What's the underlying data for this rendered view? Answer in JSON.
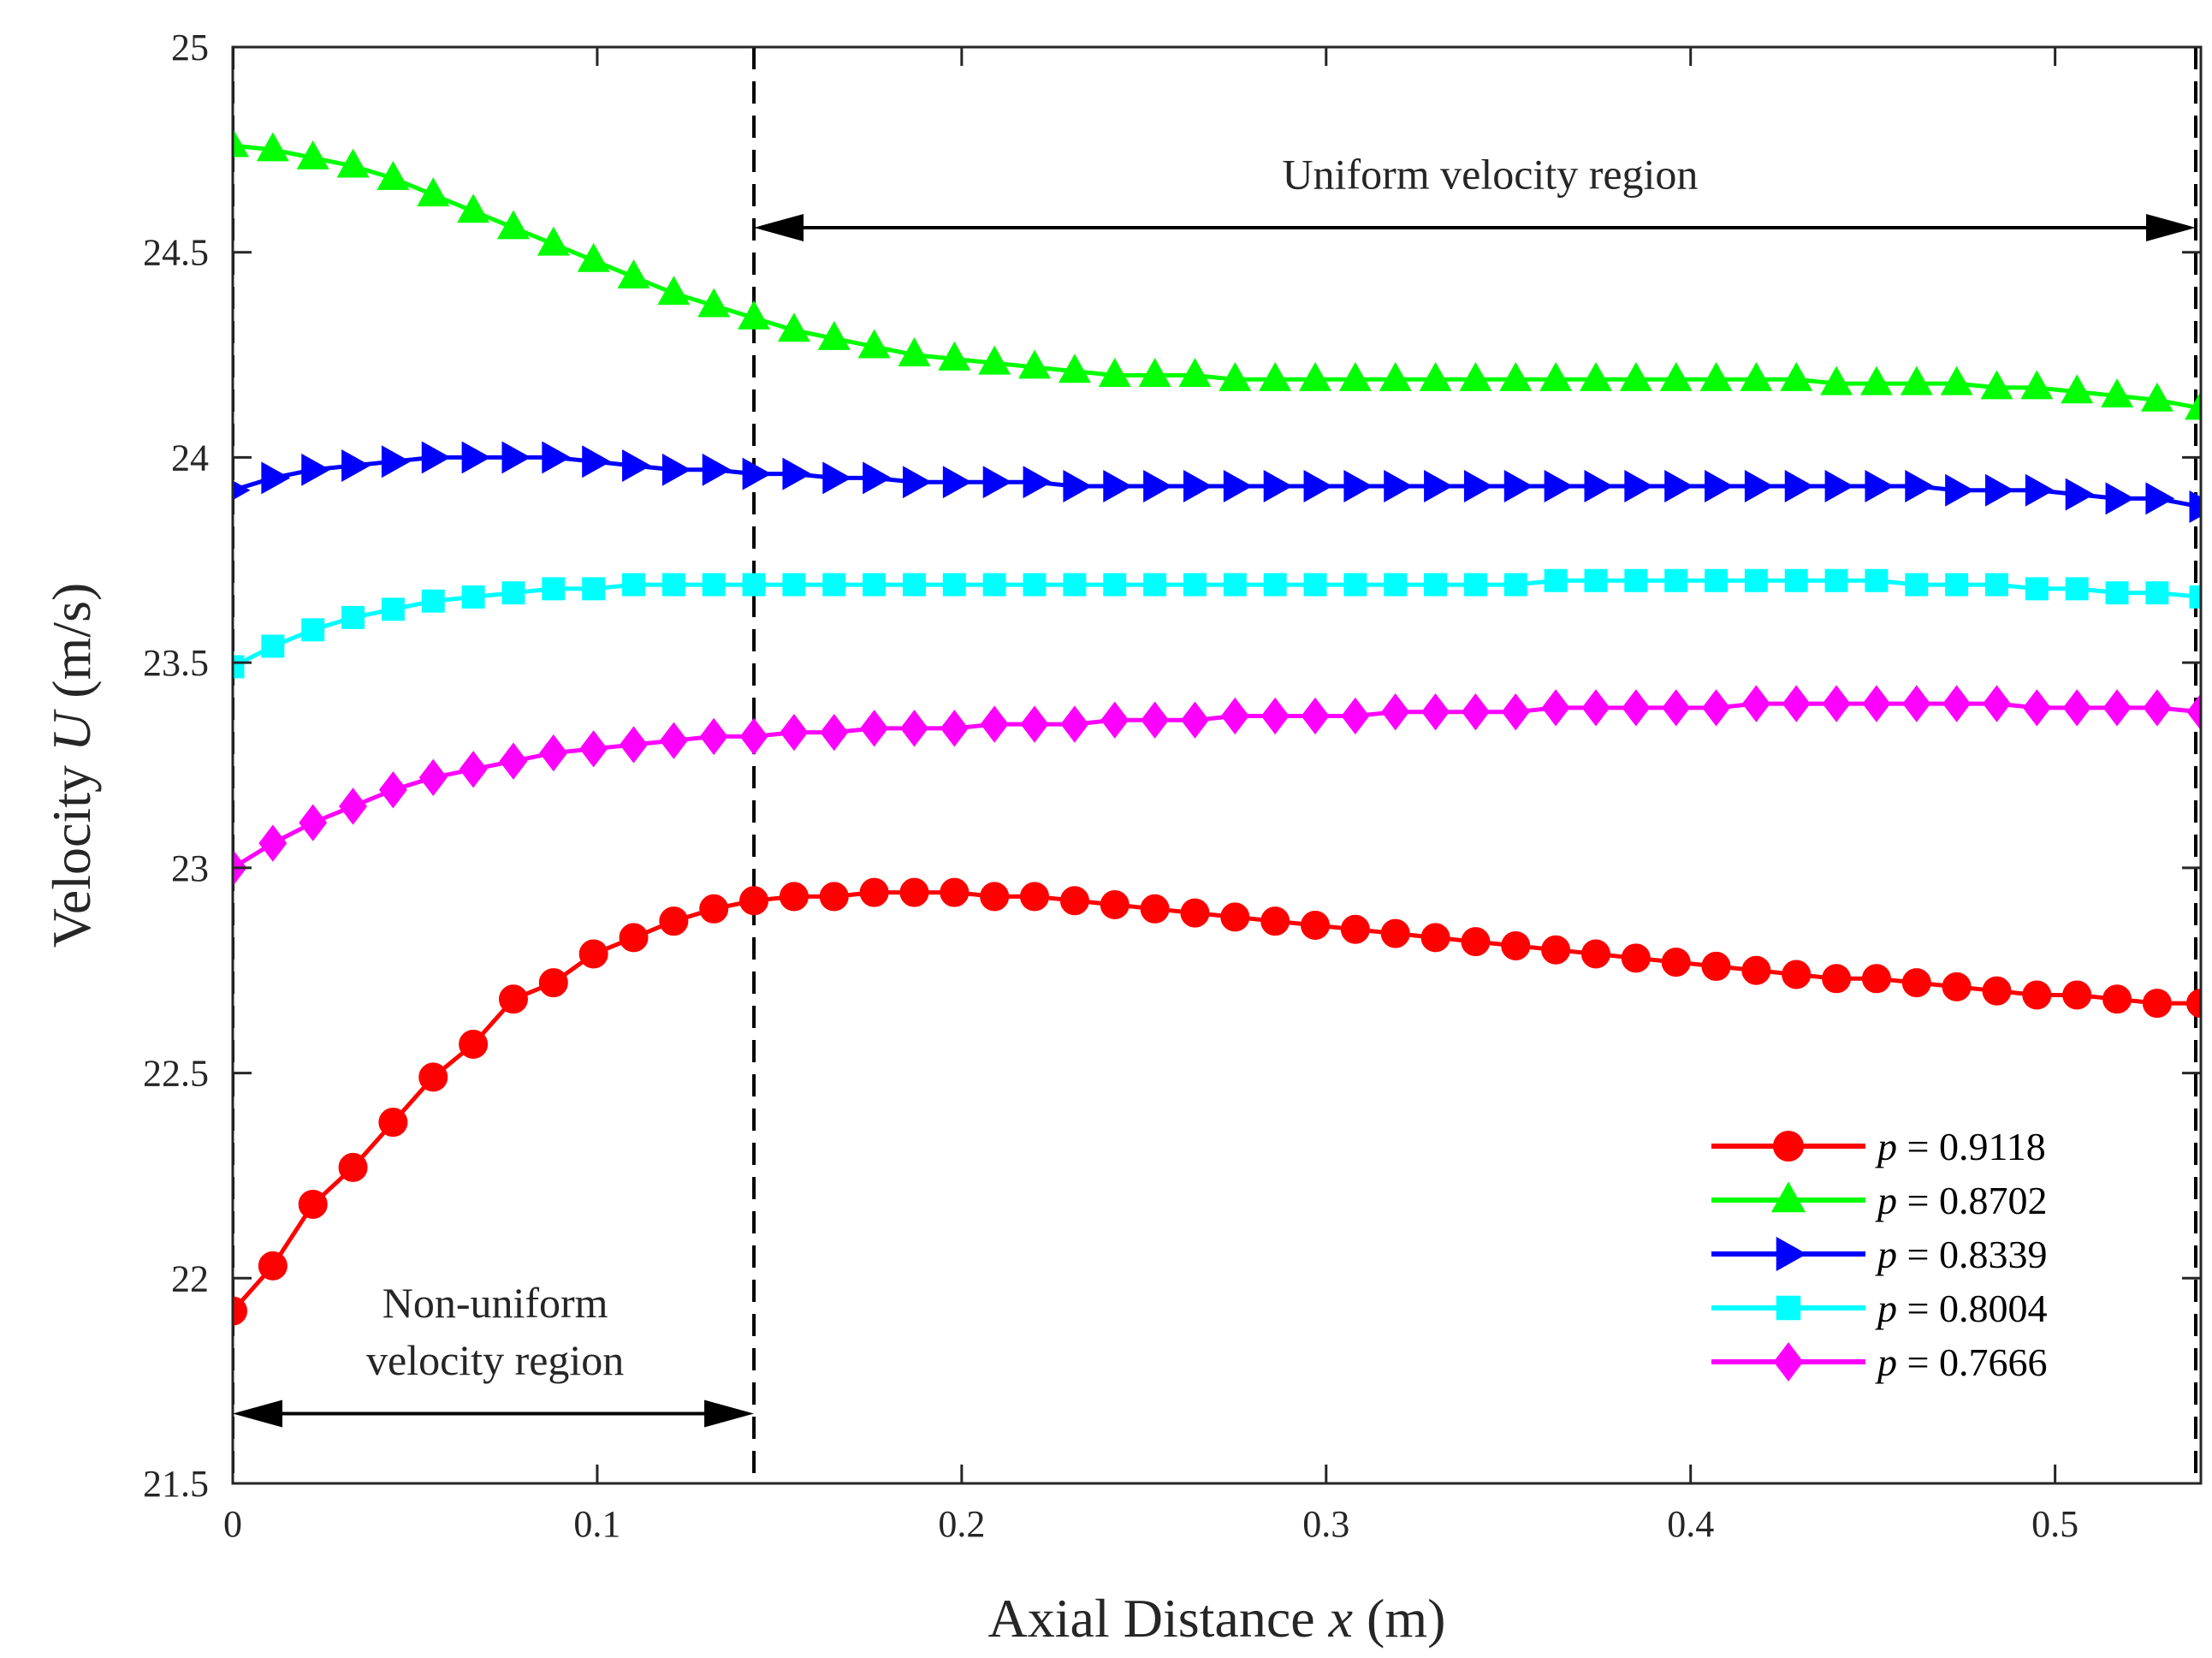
{
  "chart_data": {
    "type": "line",
    "title": "",
    "xlabel": {
      "prefix": "Axial Distance ",
      "var": "x",
      "suffix": " (m)"
    },
    "ylabel": {
      "prefix": "Velocity ",
      "var": "U",
      "suffix": " (m/s)"
    },
    "xlim": [
      0,
      0.54
    ],
    "ylim": [
      21.5,
      25
    ],
    "x_ticks": [
      0,
      0.1,
      0.2,
      0.3,
      0.4,
      0.5
    ],
    "x_tick_labels": [
      "0",
      "0.1",
      "0.2",
      "0.3",
      "0.4",
      "0.5"
    ],
    "y_ticks": [
      21.5,
      22,
      22.5,
      23,
      23.5,
      24,
      24.5,
      25
    ],
    "y_tick_labels": [
      "21.5",
      "22",
      "22.5",
      "23",
      "23.5",
      "24",
      "24.5",
      "25"
    ],
    "grid": false,
    "legend_position": "bottom-right",
    "x": [
      0,
      0.011,
      0.022,
      0.033,
      0.044,
      0.055,
      0.066,
      0.077,
      0.088,
      0.099,
      0.11,
      0.121,
      0.132,
      0.143,
      0.154,
      0.165,
      0.176,
      0.187,
      0.198,
      0.209,
      0.22,
      0.231,
      0.242,
      0.253,
      0.264,
      0.275,
      0.286,
      0.297,
      0.308,
      0.319,
      0.33,
      0.341,
      0.352,
      0.363,
      0.374,
      0.385,
      0.396,
      0.407,
      0.418,
      0.429,
      0.44,
      0.451,
      0.462,
      0.473,
      0.484,
      0.495,
      0.506,
      0.517,
      0.528,
      0.54
    ],
    "series": [
      {
        "name_var": "p",
        "name_value": " = 0.9118",
        "color": "#ff0000",
        "marker": "circle",
        "values": [
          21.92,
          22.03,
          22.18,
          22.27,
          22.38,
          22.49,
          22.57,
          22.68,
          22.72,
          22.79,
          22.83,
          22.87,
          22.9,
          22.92,
          22.93,
          22.93,
          22.94,
          22.94,
          22.94,
          22.93,
          22.93,
          22.92,
          22.91,
          22.9,
          22.89,
          22.88,
          22.87,
          22.86,
          22.85,
          22.84,
          22.83,
          22.82,
          22.81,
          22.8,
          22.79,
          22.78,
          22.77,
          22.76,
          22.75,
          22.74,
          22.73,
          22.73,
          22.72,
          22.71,
          22.7,
          22.69,
          22.69,
          22.68,
          22.67,
          22.67
        ]
      },
      {
        "name_var": "p",
        "name_value": " = 0.8702",
        "color": "#00ff00",
        "marker": "triangle-up",
        "values": [
          24.76,
          24.75,
          24.73,
          24.71,
          24.68,
          24.64,
          24.6,
          24.56,
          24.52,
          24.48,
          24.44,
          24.4,
          24.37,
          24.34,
          24.31,
          24.29,
          24.27,
          24.25,
          24.24,
          24.23,
          24.22,
          24.21,
          24.2,
          24.2,
          24.2,
          24.19,
          24.19,
          24.19,
          24.19,
          24.19,
          24.19,
          24.19,
          24.19,
          24.19,
          24.19,
          24.19,
          24.19,
          24.19,
          24.19,
          24.19,
          24.18,
          24.18,
          24.18,
          24.18,
          24.17,
          24.17,
          24.16,
          24.15,
          24.14,
          24.12
        ]
      },
      {
        "name_var": "p",
        "name_value": " = 0.8339",
        "color": "#0000ff",
        "marker": "triangle-right",
        "values": [
          23.92,
          23.95,
          23.97,
          23.98,
          23.99,
          24.0,
          24.0,
          24.0,
          24.0,
          23.99,
          23.98,
          23.97,
          23.97,
          23.96,
          23.96,
          23.95,
          23.95,
          23.94,
          23.94,
          23.94,
          23.94,
          23.93,
          23.93,
          23.93,
          23.93,
          23.93,
          23.93,
          23.93,
          23.93,
          23.93,
          23.93,
          23.93,
          23.93,
          23.93,
          23.93,
          23.93,
          23.93,
          23.93,
          23.93,
          23.93,
          23.93,
          23.93,
          23.93,
          23.92,
          23.92,
          23.92,
          23.91,
          23.9,
          23.9,
          23.88
        ]
      },
      {
        "name_var": "p",
        "name_value": " = 0.8004",
        "color": "#00ffff",
        "marker": "square",
        "values": [
          23.49,
          23.54,
          23.58,
          23.61,
          23.63,
          23.65,
          23.66,
          23.67,
          23.68,
          23.68,
          23.69,
          23.69,
          23.69,
          23.69,
          23.69,
          23.69,
          23.69,
          23.69,
          23.69,
          23.69,
          23.69,
          23.69,
          23.69,
          23.69,
          23.69,
          23.69,
          23.69,
          23.69,
          23.69,
          23.69,
          23.69,
          23.69,
          23.69,
          23.7,
          23.7,
          23.7,
          23.7,
          23.7,
          23.7,
          23.7,
          23.7,
          23.7,
          23.69,
          23.69,
          23.69,
          23.68,
          23.68,
          23.67,
          23.67,
          23.66
        ]
      },
      {
        "name_var": "p",
        "name_value": " = 0.7666",
        "color": "#ff00ff",
        "marker": "diamond",
        "values": [
          23.0,
          23.06,
          23.11,
          23.15,
          23.19,
          23.22,
          23.24,
          23.26,
          23.28,
          23.29,
          23.3,
          23.31,
          23.32,
          23.32,
          23.33,
          23.33,
          23.34,
          23.34,
          23.34,
          23.35,
          23.35,
          23.35,
          23.36,
          23.36,
          23.36,
          23.37,
          23.37,
          23.37,
          23.37,
          23.38,
          23.38,
          23.38,
          23.38,
          23.39,
          23.39,
          23.39,
          23.39,
          23.39,
          23.4,
          23.4,
          23.4,
          23.4,
          23.4,
          23.4,
          23.4,
          23.39,
          23.39,
          23.39,
          23.39,
          23.38
        ]
      }
    ],
    "reference_lines_x": [
      0,
      0.143,
      0.542
    ],
    "annotations": [
      {
        "label": "Uniform velocity region",
        "type": "double-arrow",
        "x_from": 0.143,
        "x_to": 0.542,
        "y": 24.56,
        "text_y": 24.69,
        "text_x": 0.345
      },
      {
        "label_lines": [
          "Non-uniform",
          "velocity region"
        ],
        "type": "double-arrow",
        "x_from": 0,
        "x_to": 0.143,
        "y": 21.67,
        "text_y": [
          21.94,
          21.8
        ],
        "text_x": 0.072
      }
    ]
  }
}
